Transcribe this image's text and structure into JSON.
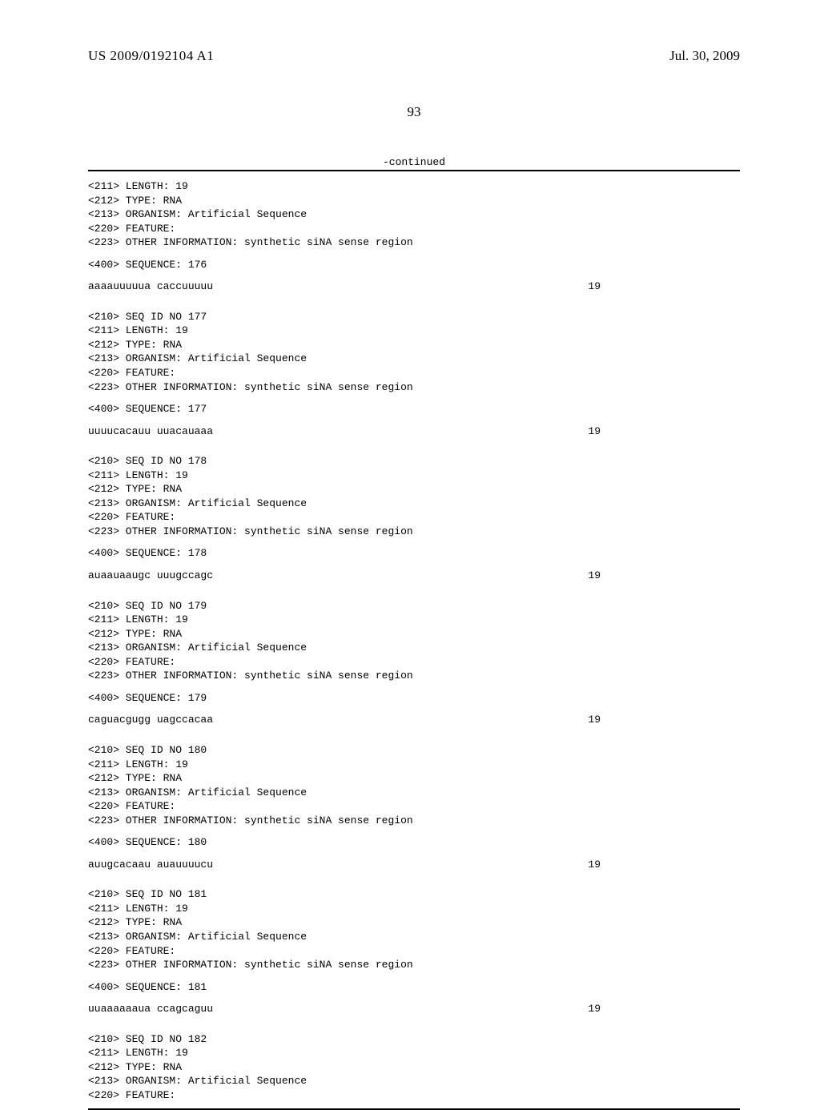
{
  "header": {
    "publication_number": "US 2009/0192104 A1",
    "publication_date": "Jul. 30, 2009"
  },
  "page_number": "93",
  "continued_label": "-continued",
  "blocks": [
    {
      "lines": [
        "<211> LENGTH: 19",
        "<212> TYPE: RNA",
        "<213> ORGANISM: Artificial Sequence",
        "<220> FEATURE:",
        "<223> OTHER INFORMATION: synthetic siNA sense region"
      ],
      "seq_label": "<400> SEQUENCE: 176",
      "sequence": "aaaauuuuua caccuuuuu",
      "seq_len": "19"
    },
    {
      "lines": [
        "<210> SEQ ID NO 177",
        "<211> LENGTH: 19",
        "<212> TYPE: RNA",
        "<213> ORGANISM: Artificial Sequence",
        "<220> FEATURE:",
        "<223> OTHER INFORMATION: synthetic siNA sense region"
      ],
      "seq_label": "<400> SEQUENCE: 177",
      "sequence": "uuuucacauu uuacauaaa",
      "seq_len": "19"
    },
    {
      "lines": [
        "<210> SEQ ID NO 178",
        "<211> LENGTH: 19",
        "<212> TYPE: RNA",
        "<213> ORGANISM: Artificial Sequence",
        "<220> FEATURE:",
        "<223> OTHER INFORMATION: synthetic siNA sense region"
      ],
      "seq_label": "<400> SEQUENCE: 178",
      "sequence": "auaauaaugc uuugccagc",
      "seq_len": "19"
    },
    {
      "lines": [
        "<210> SEQ ID NO 179",
        "<211> LENGTH: 19",
        "<212> TYPE: RNA",
        "<213> ORGANISM: Artificial Sequence",
        "<220> FEATURE:",
        "<223> OTHER INFORMATION: synthetic siNA sense region"
      ],
      "seq_label": "<400> SEQUENCE: 179",
      "sequence": "caguacgugg uagccacaa",
      "seq_len": "19"
    },
    {
      "lines": [
        "<210> SEQ ID NO 180",
        "<211> LENGTH: 19",
        "<212> TYPE: RNA",
        "<213> ORGANISM: Artificial Sequence",
        "<220> FEATURE:",
        "<223> OTHER INFORMATION: synthetic siNA sense region"
      ],
      "seq_label": "<400> SEQUENCE: 180",
      "sequence": "auugcacaau auauuuucu",
      "seq_len": "19"
    },
    {
      "lines": [
        "<210> SEQ ID NO 181",
        "<211> LENGTH: 19",
        "<212> TYPE: RNA",
        "<213> ORGANISM: Artificial Sequence",
        "<220> FEATURE:",
        "<223> OTHER INFORMATION: synthetic siNA sense region"
      ],
      "seq_label": "<400> SEQUENCE: 181",
      "sequence": "uuaaaaaaua ccagcaguu",
      "seq_len": "19"
    },
    {
      "lines": [
        "<210> SEQ ID NO 182",
        "<211> LENGTH: 19",
        "<212> TYPE: RNA",
        "<213> ORGANISM: Artificial Sequence",
        "<220> FEATURE:"
      ],
      "seq_label": null,
      "sequence": null,
      "seq_len": null
    }
  ]
}
